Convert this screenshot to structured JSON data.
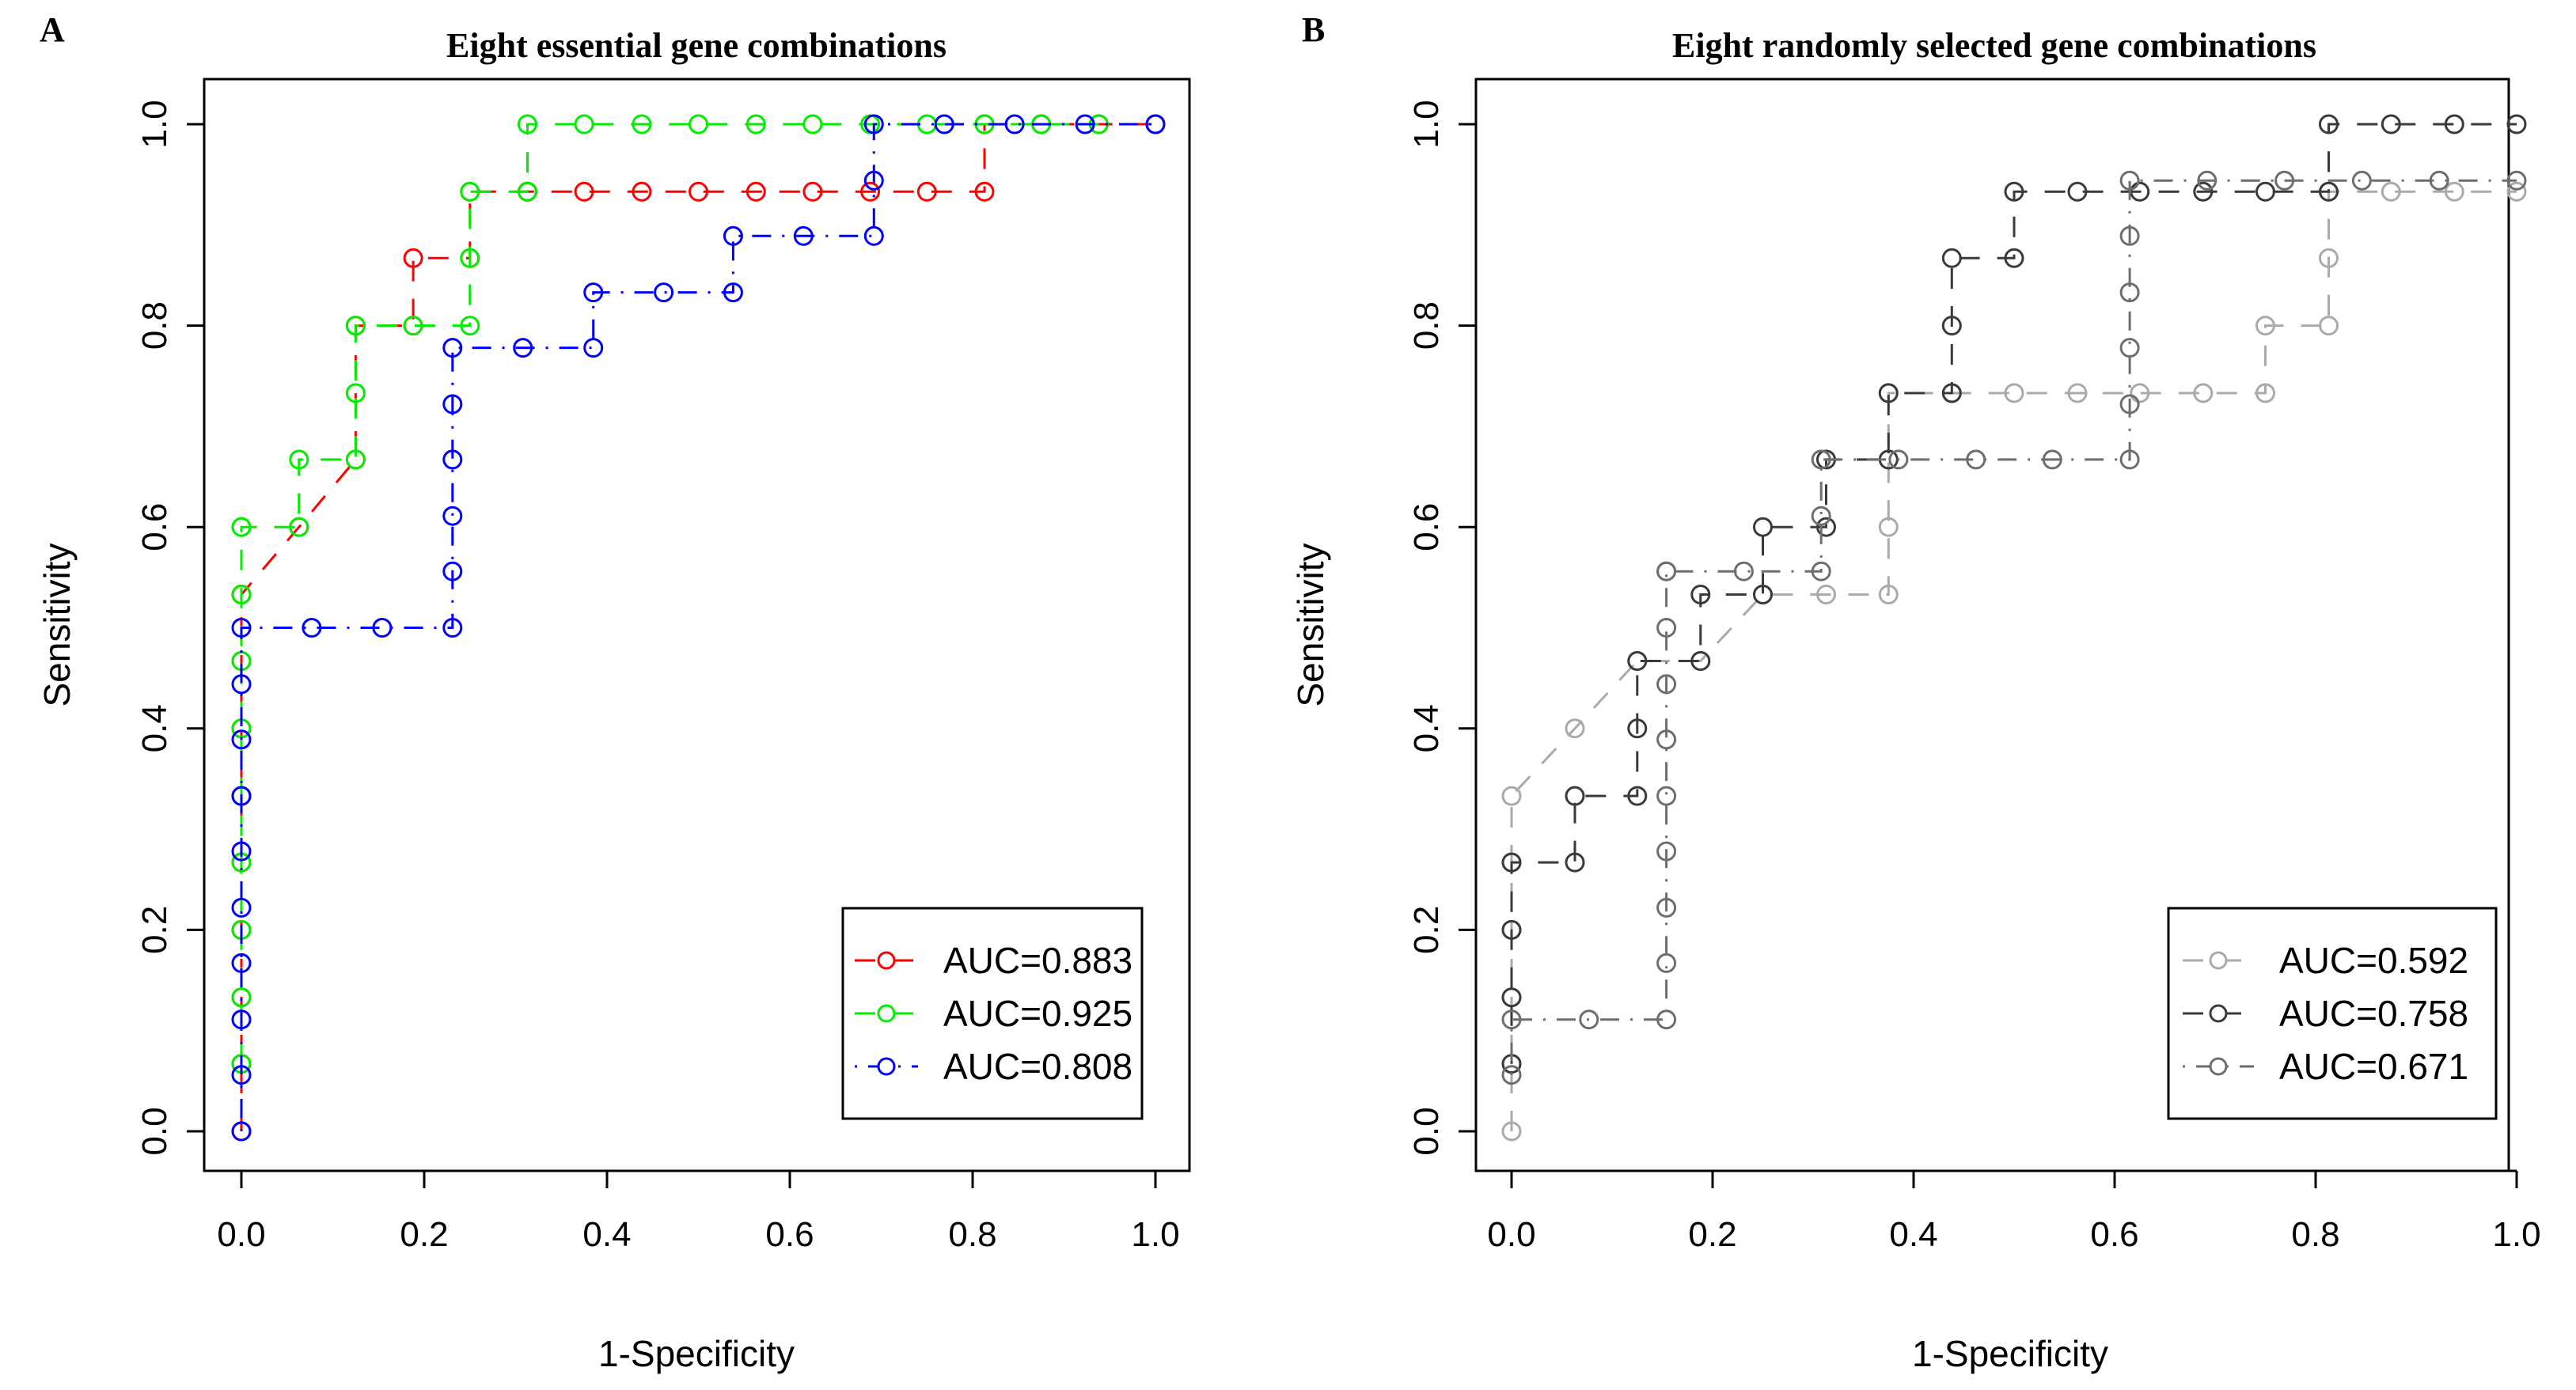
{
  "chart_data": [
    {
      "panel": "A",
      "type": "line",
      "title": "Eight essential gene combinations",
      "xlabel": "1-Specificity",
      "ylabel": "Sensitivity",
      "xlim": [
        0,
        1
      ],
      "ylim": [
        0,
        1
      ],
      "xticks": [
        "0.0",
        "0.2",
        "0.4",
        "0.6",
        "0.8",
        "1.0"
      ],
      "yticks": [
        "0.0",
        "0.2",
        "0.4",
        "0.6",
        "0.8",
        "1.0"
      ],
      "legend_position": "bottom-right",
      "series": [
        {
          "name": "AUC=0.883",
          "color": "#ff0000",
          "dash": "dashed",
          "x": [
            0,
            0,
            0,
            0,
            0,
            0,
            0,
            0,
            0,
            0.063,
            0.125,
            0.125,
            0.188,
            0.188,
            0.25,
            0.25,
            0.313,
            0.313,
            0.375,
            0.438,
            0.5,
            0.563,
            0.625,
            0.688,
            0.75,
            0.813,
            0.813,
            0.875,
            0.938,
            1
          ],
          "y": [
            0,
            0.067,
            0.133,
            0.2,
            0.267,
            0.333,
            0.4,
            0.467,
            0.533,
            0.6,
            0.667,
            0.8,
            0.8,
            0.867,
            0.867,
            0.933,
            0.933,
            0.933,
            0.933,
            0.933,
            0.933,
            0.933,
            0.933,
            0.933,
            0.933,
            0.933,
            1,
            1,
            1,
            1
          ]
        },
        {
          "name": "AUC=0.925",
          "color": "#00ee00",
          "dash": "dashed",
          "x": [
            0,
            0,
            0,
            0,
            0,
            0,
            0,
            0,
            0,
            0,
            0.063,
            0.063,
            0.125,
            0.125,
            0.125,
            0.188,
            0.25,
            0.25,
            0.25,
            0.313,
            0.313,
            0.375,
            0.438,
            0.5,
            0.563,
            0.625,
            0.688,
            0.75,
            0.813,
            0.875,
            0.938
          ],
          "y": [
            0.067,
            0.133,
            0.2,
            0.267,
            0.333,
            0.4,
            0.467,
            0.533,
            0.6,
            0.6,
            0.6,
            0.667,
            0.667,
            0.733,
            0.8,
            0.8,
            0.8,
            0.867,
            0.933,
            0.933,
            1,
            1,
            1,
            1,
            1,
            1,
            1,
            1,
            1,
            1,
            1
          ]
        },
        {
          "name": "AUC=0.808",
          "color": "#0000ff",
          "dash": "dotdash",
          "x": [
            0,
            0,
            0,
            0,
            0,
            0,
            0,
            0,
            0,
            0,
            0.077,
            0.154,
            0.231,
            0.231,
            0.231,
            0.231,
            0.231,
            0.231,
            0.308,
            0.385,
            0.385,
            0.462,
            0.538,
            0.538,
            0.615,
            0.692,
            0.692,
            0.692,
            0.769,
            0.846,
            0.923,
            1
          ],
          "y": [
            0,
            0.056,
            0.111,
            0.167,
            0.222,
            0.278,
            0.333,
            0.389,
            0.444,
            0.5,
            0.5,
            0.5,
            0.5,
            0.556,
            0.611,
            0.667,
            0.722,
            0.778,
            0.778,
            0.778,
            0.833,
            0.833,
            0.833,
            0.889,
            0.889,
            0.889,
            0.944,
            1,
            1,
            1,
            1,
            1
          ]
        }
      ]
    },
    {
      "panel": "B",
      "type": "line",
      "title": "Eight randomly selected gene combinations",
      "xlabel": "1-Specificity",
      "ylabel": "Sensitivity",
      "xlim": [
        0,
        1
      ],
      "ylim": [
        0,
        1
      ],
      "xticks": [
        "0.0",
        "0.2",
        "0.4",
        "0.6",
        "0.8",
        "1.0"
      ],
      "yticks": [
        "0.0",
        "0.2",
        "0.4",
        "0.6",
        "0.8",
        "1.0"
      ],
      "legend_position": "bottom-right",
      "series": [
        {
          "name": "AUC=0.592",
          "color": "#aaaaaa",
          "dash": "dashed",
          "x": [
            0,
            0,
            0,
            0,
            0,
            0,
            0.063,
            0.125,
            0.188,
            0.25,
            0.313,
            0.375,
            0.375,
            0.375,
            0.438,
            0.5,
            0.563,
            0.625,
            0.688,
            0.75,
            0.75,
            0.813,
            0.813,
            0.813,
            0.875,
            0.938,
            1
          ],
          "y": [
            0,
            0.067,
            0.133,
            0.2,
            0.267,
            0.333,
            0.4,
            0.467,
            0.467,
            0.533,
            0.533,
            0.533,
            0.6,
            0.733,
            0.733,
            0.733,
            0.733,
            0.733,
            0.733,
            0.733,
            0.8,
            0.8,
            0.867,
            0.933,
            0.933,
            0.933,
            0.933
          ]
        },
        {
          "name": "AUC=0.758",
          "color": "#3a3a3a",
          "dash": "dashed",
          "x": [
            0,
            0,
            0,
            0,
            0.063,
            0.063,
            0.125,
            0.125,
            0.125,
            0.188,
            0.188,
            0.25,
            0.25,
            0.313,
            0.313,
            0.375,
            0.375,
            0.438,
            0.438,
            0.438,
            0.5,
            0.5,
            0.563,
            0.625,
            0.688,
            0.75,
            0.813,
            0.813,
            0.875,
            0.938,
            1
          ],
          "y": [
            0.067,
            0.133,
            0.2,
            0.267,
            0.267,
            0.333,
            0.333,
            0.4,
            0.467,
            0.467,
            0.533,
            0.533,
            0.6,
            0.6,
            0.667,
            0.667,
            0.733,
            0.733,
            0.8,
            0.867,
            0.867,
            0.933,
            0.933,
            0.933,
            0.933,
            0.933,
            0.933,
            1,
            1,
            1,
            1
          ]
        },
        {
          "name": "AUC=0.671",
          "color": "#6e6e6e",
          "dash": "dotdash",
          "x": [
            0,
            0,
            0.077,
            0.154,
            0.154,
            0.154,
            0.154,
            0.154,
            0.154,
            0.154,
            0.154,
            0.154,
            0.154,
            0.231,
            0.308,
            0.308,
            0.308,
            0.385,
            0.462,
            0.538,
            0.615,
            0.615,
            0.615,
            0.615,
            0.615,
            0.615,
            0.692,
            0.769,
            0.846,
            0.923,
            1
          ],
          "y": [
            0.056,
            0.111,
            0.111,
            0.111,
            0.167,
            0.222,
            0.278,
            0.333,
            0.389,
            0.444,
            0.5,
            0.556,
            0.556,
            0.556,
            0.556,
            0.611,
            0.667,
            0.667,
            0.667,
            0.667,
            0.667,
            0.722,
            0.778,
            0.833,
            0.889,
            0.944,
            0.944,
            0.944,
            0.944,
            0.944,
            0.944
          ]
        }
      ]
    }
  ]
}
